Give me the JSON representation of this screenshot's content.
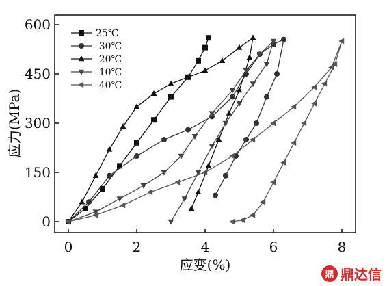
{
  "chart_data": {
    "type": "line",
    "xlabel": "应变(%)",
    "ylabel": "应力(MPa)",
    "xlim": [
      0,
      8
    ],
    "ylim": [
      0,
      600
    ],
    "xticks": [
      "0",
      "2",
      "4",
      "6",
      "8"
    ],
    "yticks": [
      "0",
      "150",
      "300",
      "450",
      "600"
    ],
    "legend_position": "top-left",
    "grid": false,
    "series": [
      {
        "name": "25℃",
        "marker": "square",
        "color": "#111111",
        "x": [
          0,
          0.5,
          1.0,
          1.5,
          2.0,
          2.5,
          3.0,
          3.5,
          3.8,
          4.0,
          4.1
        ],
        "y": [
          0,
          40,
          100,
          170,
          240,
          310,
          380,
          440,
          490,
          530,
          560
        ]
      },
      {
        "name": "-30℃",
        "marker": "circle",
        "color": "#333333",
        "x": [
          0,
          0.6,
          1.2,
          2.0,
          2.8,
          3.5,
          4.2,
          4.8,
          5.2,
          5.6,
          6.0,
          6.3,
          6.1,
          5.8,
          5.5,
          5.2,
          4.9,
          4.6,
          4.3
        ],
        "y": [
          0,
          60,
          140,
          200,
          250,
          280,
          320,
          380,
          450,
          510,
          540,
          555,
          450,
          380,
          300,
          250,
          200,
          140,
          80
        ]
      },
      {
        "name": "-20℃",
        "marker": "triangle-up",
        "color": "#111111",
        "x": [
          0,
          0.4,
          0.8,
          1.2,
          1.6,
          2.0,
          2.5,
          3.0,
          3.5,
          4.0,
          4.5,
          5.0,
          5.4,
          5.3,
          5.0,
          4.7,
          4.4,
          4.1,
          3.8,
          3.6
        ],
        "y": [
          0,
          60,
          140,
          220,
          290,
          350,
          390,
          420,
          440,
          460,
          490,
          530,
          560,
          500,
          400,
          330,
          250,
          170,
          90,
          40
        ]
      },
      {
        "name": "-10℃",
        "marker": "triangle-down",
        "color": "#444444",
        "x": [
          0,
          0.8,
          1.5,
          2.2,
          2.8,
          3.3,
          3.7,
          4.2,
          4.8,
          5.2,
          5.6,
          6.0,
          5.8,
          5.4,
          5.0,
          4.6,
          4.2,
          3.8,
          3.4,
          3.0
        ],
        "y": [
          0,
          30,
          70,
          110,
          150,
          200,
          260,
          330,
          400,
          460,
          510,
          550,
          480,
          420,
          360,
          300,
          230,
          150,
          70,
          0
        ]
      },
      {
        "name": "-40℃",
        "marker": "triangle-left",
        "color": "#555555",
        "x": [
          0,
          0.8,
          1.6,
          2.4,
          3.2,
          4.0,
          4.8,
          5.4,
          6.0,
          6.6,
          7.2,
          7.7,
          8.0,
          7.8,
          7.5,
          7.2,
          6.9,
          6.6,
          6.3,
          6.0,
          5.7,
          5.4,
          5.1,
          4.8
        ],
        "y": [
          0,
          20,
          50,
          90,
          120,
          150,
          200,
          250,
          300,
          350,
          410,
          470,
          550,
          480,
          420,
          360,
          300,
          240,
          180,
          120,
          60,
          20,
          5,
          0
        ]
      }
    ]
  },
  "watermark": {
    "logo_text": "鼎",
    "text": "鼎达信"
  }
}
